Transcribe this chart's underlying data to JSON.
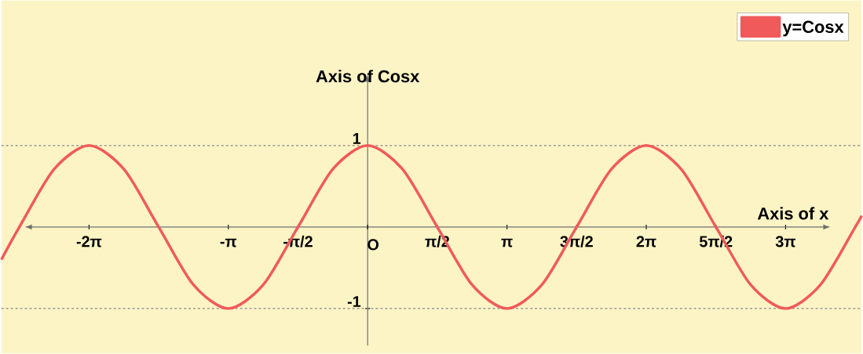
{
  "chart_data": {
    "type": "line",
    "xlabel": "Axis of x",
    "ylabel": "Axis of Cosx",
    "x": [
      -8.26,
      -7.854,
      -7.069,
      -6.283,
      -5.498,
      -4.712,
      -3.927,
      -3.142,
      -2.356,
      -1.571,
      -0.785,
      0,
      0.785,
      1.571,
      2.356,
      3.142,
      3.927,
      4.712,
      5.498,
      6.283,
      7.069,
      7.854,
      8.639,
      9.425,
      10.21,
      10.996,
      11.14
    ],
    "series": [
      {
        "name": "y=Cosx",
        "color": "#f05a5a",
        "values": [
          -0.4,
          0,
          0.71,
          1,
          0.71,
          0,
          -0.71,
          -1,
          -0.71,
          0,
          0.71,
          1,
          0.71,
          0,
          -0.71,
          -1,
          -0.71,
          0,
          0.71,
          1,
          0.71,
          0,
          -0.71,
          -1,
          -0.71,
          0,
          0.14
        ]
      }
    ],
    "xlim": [
      -8.26,
      11.14
    ],
    "ylim": [
      -1.55,
      2.78
    ],
    "xticks": [
      {
        "value": -6.283,
        "label": "-2π"
      },
      {
        "value": -3.142,
        "label": "-π"
      },
      {
        "value": -1.571,
        "label": "-π/2"
      },
      {
        "value": 0,
        "label": "O"
      },
      {
        "value": 1.571,
        "label": "π/2"
      },
      {
        "value": 3.142,
        "label": "π"
      },
      {
        "value": 4.712,
        "label": "3π/2"
      },
      {
        "value": 6.283,
        "label": "2π"
      },
      {
        "value": 7.854,
        "label": "5π/2"
      },
      {
        "value": 9.425,
        "label": "3π"
      }
    ],
    "yticks": [
      1,
      -1
    ],
    "ref_lines": [
      {
        "axis": "y",
        "value": 1,
        "color": "#888888",
        "line_style": "dashed"
      },
      {
        "axis": "y",
        "value": -1,
        "color": "#888888",
        "line_style": "dashed"
      }
    ],
    "legend": "top right",
    "line_style": "solid"
  }
}
